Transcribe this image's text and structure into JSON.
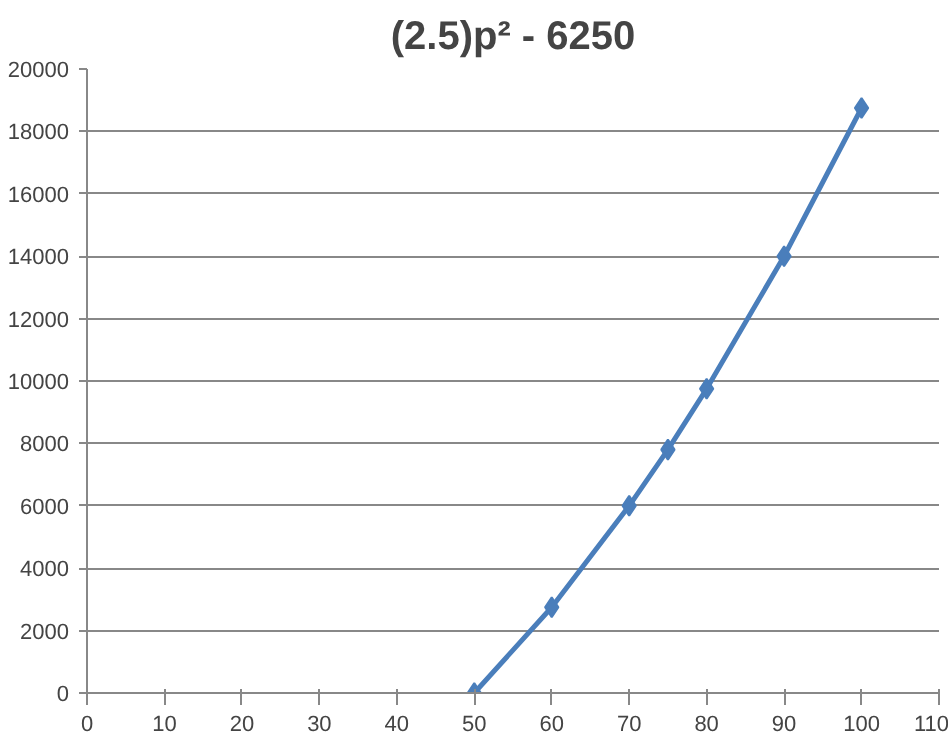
{
  "chart_data": {
    "type": "line",
    "title": "(2.5)p² - 6250",
    "x": [
      50,
      60,
      70,
      75,
      80,
      90,
      100
    ],
    "series": [
      {
        "color": "#4a7ebb",
        "values": [
          0,
          2750,
          6000,
          7800,
          9750,
          14000,
          18750
        ]
      }
    ],
    "xlim": [
      0,
      110
    ],
    "xticks": [
      0,
      10,
      20,
      30,
      40,
      50,
      60,
      70,
      80,
      90,
      100,
      110
    ],
    "ylim": [
      0,
      20000
    ],
    "yticks": [
      0,
      2000,
      4000,
      6000,
      8000,
      10000,
      12000,
      14000,
      16000,
      18000,
      20000
    ],
    "grid": "y",
    "marker": "diamond",
    "line_style": "solid"
  }
}
